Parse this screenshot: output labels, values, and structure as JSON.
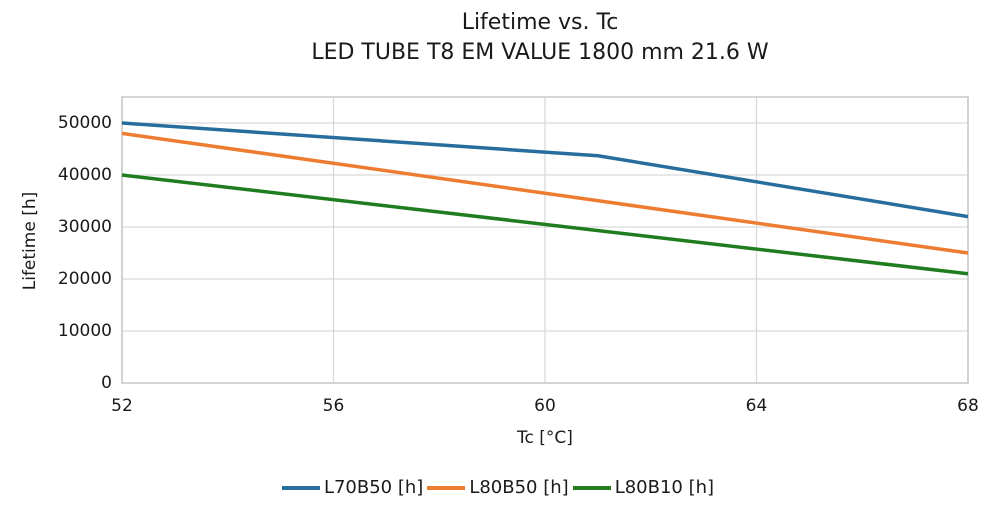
{
  "chart_data": {
    "type": "line",
    "title": "Lifetime vs. Tc",
    "subtitle": "LED TUBE T8 EM VALUE 1800 mm 21.6 W",
    "xlabel": "Tc [°C]",
    "ylabel": "Lifetime [h]",
    "xlim": [
      52,
      68
    ],
    "ylim": [
      0,
      55000
    ],
    "xticks": [
      52,
      56,
      60,
      64,
      68
    ],
    "yticks": [
      0,
      10000,
      20000,
      30000,
      40000,
      50000
    ],
    "grid": true,
    "legend_position": "bottom",
    "colors": {
      "grid": "#d9d9d9",
      "frame": "#c8c8c8",
      "text": "#1a1a1a"
    },
    "series": [
      {
        "name": "L70B50 [h]",
        "color": "#276e9e",
        "points": [
          [
            52,
            50000
          ],
          [
            61,
            43700
          ],
          [
            68,
            32000
          ]
        ]
      },
      {
        "name": "L80B50 [h]",
        "color": "#ed7c31",
        "points": [
          [
            52,
            48000
          ],
          [
            68,
            25000
          ]
        ]
      },
      {
        "name": "L80B10 [h]",
        "color": "#1f7c1f",
        "points": [
          [
            52,
            40000
          ],
          [
            68,
            21000
          ]
        ]
      }
    ]
  }
}
